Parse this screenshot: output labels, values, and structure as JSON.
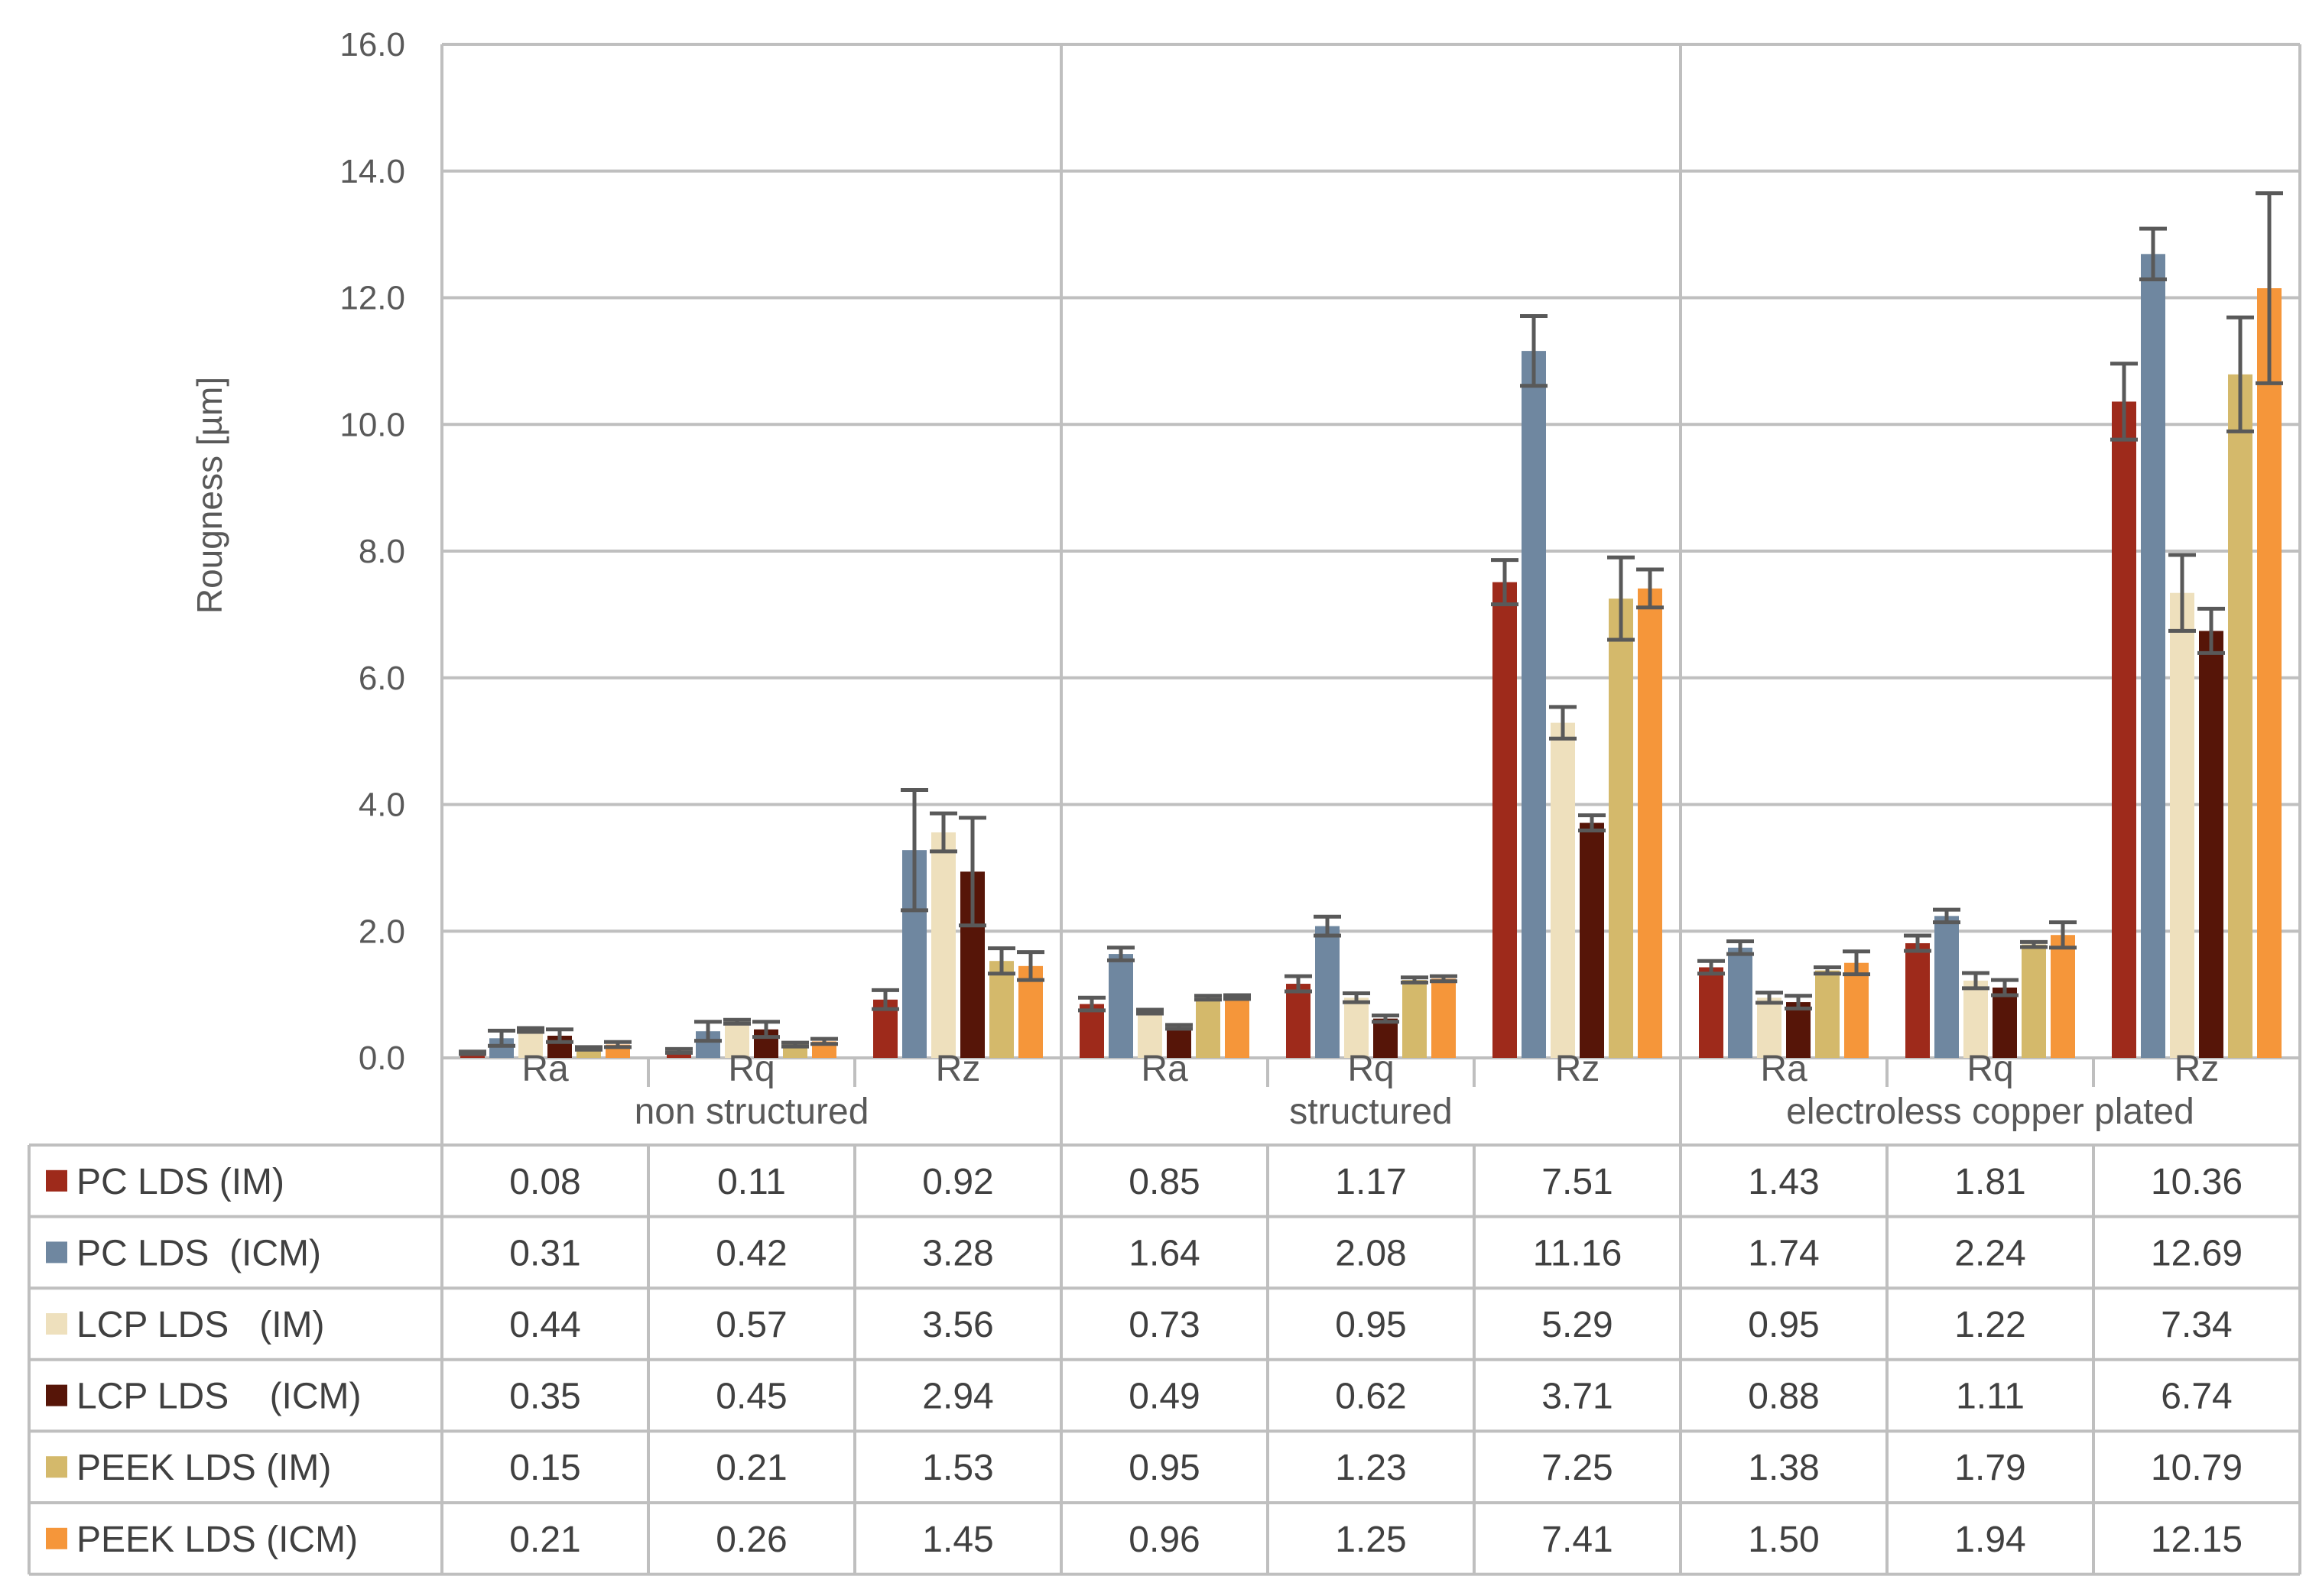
{
  "chart_data": {
    "type": "bar",
    "ylabel": "Rougness [µm]",
    "ylim": [
      0,
      16
    ],
    "yticks": [
      "0.0",
      "2.0",
      "4.0",
      "6.0",
      "8.0",
      "10.0",
      "12.0",
      "14.0",
      "16.0"
    ],
    "grid": true,
    "legend_placement": "data table rows below chart",
    "groups": [
      "non structured",
      "structured",
      "electroless copper plated"
    ],
    "categories": [
      "Ra",
      "Rq",
      "Rz",
      "Ra",
      "Rq",
      "Rz",
      "Ra",
      "Rq",
      "Rz"
    ],
    "series": [
      {
        "name": "PC LDS (IM)",
        "color": "#9e2a1b",
        "values": [
          0.08,
          0.11,
          0.92,
          0.85,
          1.17,
          7.51,
          1.43,
          1.81,
          10.36
        ],
        "labels": [
          "0.08",
          "0.11",
          "0.92",
          "0.85",
          "1.17",
          "7.51",
          "1.43",
          "1.81",
          "10.36"
        ],
        "errors": [
          0.02,
          0.03,
          0.15,
          0.1,
          0.12,
          0.35,
          0.1,
          0.12,
          0.6
        ]
      },
      {
        "name": "PC LDS  (ICM)",
        "color": "#6f87a0",
        "values": [
          0.31,
          0.42,
          3.28,
          1.64,
          2.08,
          11.16,
          1.74,
          2.24,
          12.69
        ],
        "labels": [
          "0.31",
          "0.42",
          "3.28",
          "1.64",
          "2.08",
          "11.16",
          "1.74",
          "2.24",
          "12.69"
        ],
        "errors": [
          0.12,
          0.15,
          0.95,
          0.1,
          0.15,
          0.55,
          0.1,
          0.1,
          0.4
        ]
      },
      {
        "name": "LCP LDS   (IM)",
        "color": "#eee0bd",
        "values": [
          0.44,
          0.57,
          3.56,
          0.73,
          0.95,
          5.29,
          0.95,
          1.22,
          7.34
        ],
        "labels": [
          "0.44",
          "0.57",
          "3.56",
          "0.73",
          "0.95",
          "5.29",
          "0.95",
          "1.22",
          "7.34"
        ],
        "errors": [
          0.03,
          0.03,
          0.3,
          0.03,
          0.07,
          0.25,
          0.08,
          0.12,
          0.6
        ]
      },
      {
        "name": "LCP LDS    (ICM)",
        "color": "#561508",
        "values": [
          0.35,
          0.45,
          2.94,
          0.49,
          0.62,
          3.71,
          0.88,
          1.11,
          6.74
        ],
        "labels": [
          "0.35",
          "0.45",
          "2.94",
          "0.49",
          "0.62",
          "3.71",
          "0.88",
          "1.11",
          "6.74"
        ],
        "errors": [
          0.1,
          0.12,
          0.85,
          0.03,
          0.05,
          0.12,
          0.1,
          0.12,
          0.35
        ]
      },
      {
        "name": "PEEK LDS (IM)",
        "color": "#d4b96b",
        "values": [
          0.15,
          0.21,
          1.53,
          0.95,
          1.23,
          7.25,
          1.38,
          1.79,
          10.79
        ],
        "labels": [
          "0.15",
          "0.21",
          "1.53",
          "0.95",
          "1.23",
          "7.25",
          "1.38",
          "1.79",
          "10.79"
        ],
        "errors": [
          0.02,
          0.03,
          0.2,
          0.03,
          0.04,
          0.65,
          0.05,
          0.04,
          0.9
        ]
      },
      {
        "name": "PEEK LDS (ICM)",
        "color": "#f5963a",
        "values": [
          0.21,
          0.26,
          1.45,
          0.96,
          1.25,
          7.41,
          1.5,
          1.94,
          12.15
        ],
        "labels": [
          "0.21",
          "0.26",
          "1.45",
          "0.96",
          "1.25",
          "7.41",
          "1.50",
          "1.94",
          "12.15"
        ],
        "errors": [
          0.04,
          0.04,
          0.22,
          0.03,
          0.04,
          0.3,
          0.18,
          0.2,
          1.5
        ]
      }
    ]
  }
}
